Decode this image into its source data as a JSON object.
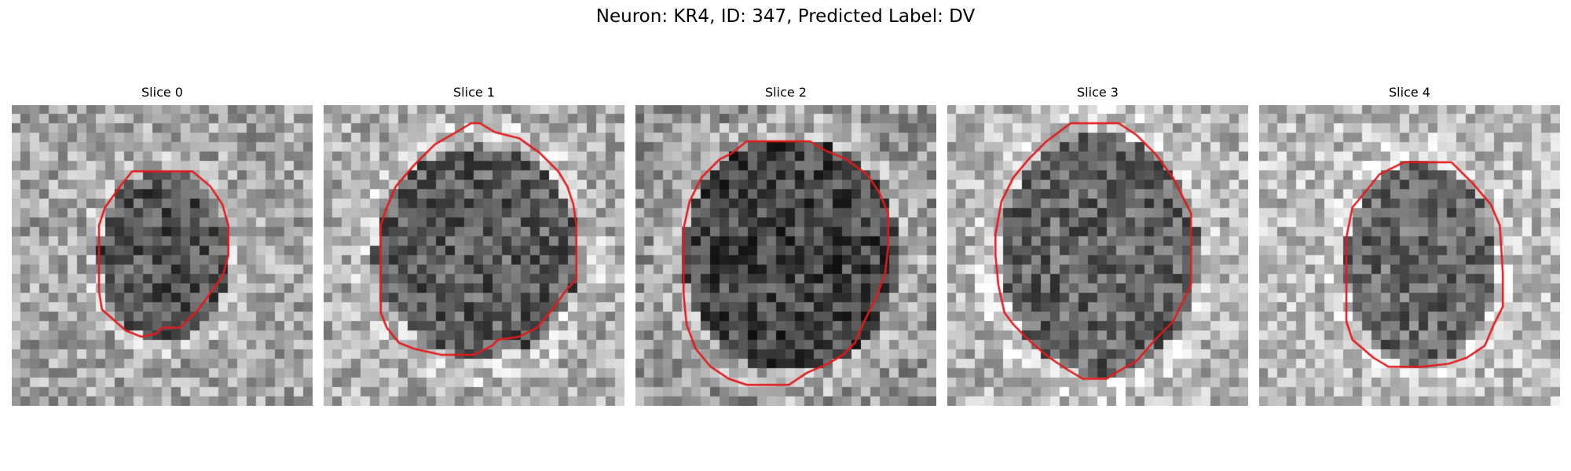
{
  "figure": {
    "title": "Neuron: KR4, ID: 347, Predicted Label: DV"
  },
  "colors": {
    "background": "#ffffff",
    "contour": "#e31a1c",
    "colormap": "gray"
  },
  "slices": [
    {
      "title": "Slice 0",
      "mean_gray": 110,
      "seed": 11,
      "dark_region": "ellipse",
      "contour_visible": true
    },
    {
      "title": "Slice 1",
      "mean_gray": 118,
      "seed": 23,
      "dark_region": "ellipse",
      "contour_visible": true
    },
    {
      "title": "Slice 2",
      "mean_gray": 95,
      "seed": 37,
      "dark_region": "ellipse",
      "contour_visible": true
    },
    {
      "title": "Slice 3",
      "mean_gray": 125,
      "seed": 41,
      "dark_region": "ellipse",
      "contour_visible": true
    },
    {
      "title": "Slice 4",
      "mean_gray": 132,
      "seed": 53,
      "dark_region": "ellipse",
      "contour_visible": true
    }
  ]
}
